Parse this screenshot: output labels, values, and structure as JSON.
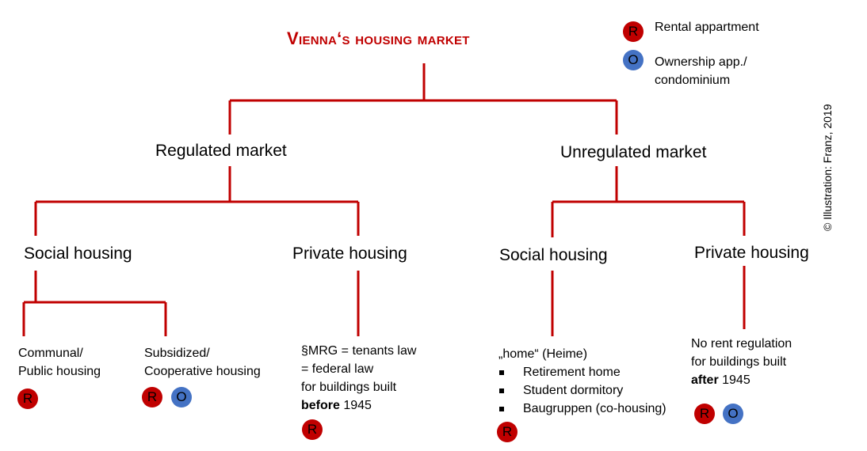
{
  "title": "Vienna‘s housing market",
  "legend": {
    "rental_badge": "R",
    "rental_label": "Rental appartment",
    "ownership_badge": "O",
    "ownership_label_1": "Ownership app./",
    "ownership_label_2": "condominium"
  },
  "copyright": "© Illustration: Franz, 2019",
  "regulated": {
    "label": "Regulated market",
    "social": {
      "label": "Social housing",
      "communal": {
        "line1": "Communal/",
        "line2": "Public housing",
        "badges": [
          "R"
        ]
      },
      "subsidized": {
        "line1": "Subsidized/",
        "line2": "Cooperative housing",
        "badges": [
          "R",
          "O"
        ]
      }
    },
    "private": {
      "label": "Private housing",
      "line1": "§MRG = tenants law",
      "line2": "= federal law",
      "line3": "for buildings built",
      "line4_bold": "before",
      "line4_rest": " 1945",
      "badges": [
        "R"
      ]
    }
  },
  "unregulated": {
    "label": "Unregulated market",
    "social": {
      "label": "Social housing",
      "intro": "„home“ (Heime)",
      "items": [
        "Retirement home",
        "Student dormitory",
        "Baugruppen (co-housing)"
      ],
      "badges": [
        "R"
      ]
    },
    "private": {
      "label": "Private housing",
      "line1": "No rent regulation",
      "line2": "for buildings built",
      "line3_bold": "after",
      "line3_rest": " 1945",
      "badges": [
        "R",
        "O"
      ]
    }
  },
  "colors": {
    "connector": "#c00000",
    "title": "#c00000",
    "rental": "#c00000",
    "ownership": "#4472c4"
  }
}
